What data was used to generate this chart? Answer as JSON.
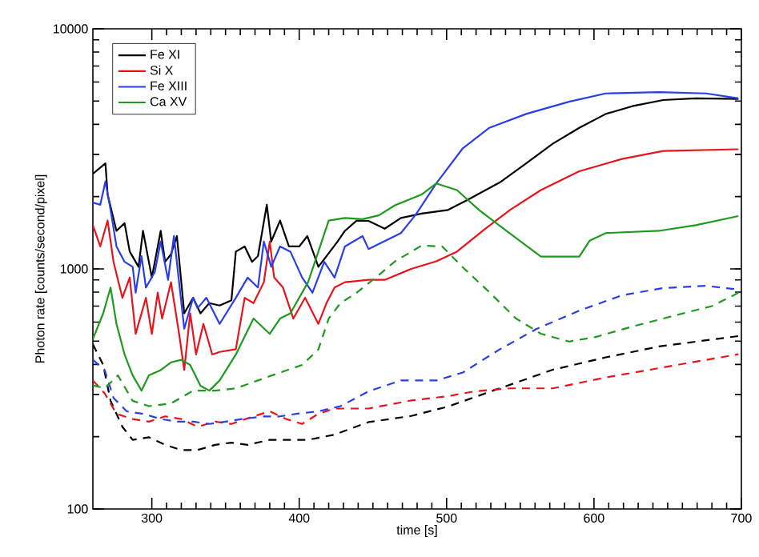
{
  "chart_data": {
    "type": "line",
    "xlabel": "time [s]",
    "ylabel": "Photon rate [counts/second/pixel]",
    "xlim": [
      260,
      700
    ],
    "ylim": [
      100,
      10000
    ],
    "xticks": [
      300,
      400,
      500,
      600,
      700
    ],
    "yticks": [
      100,
      1000,
      10000
    ],
    "log": "y",
    "legend": "top left",
    "series": [
      {
        "name": "Fe XI",
        "color": "#000000",
        "line_style": "solid",
        "x": [
          260,
          268.5,
          270,
          276,
          281.5,
          285,
          291,
          294,
          300,
          306,
          309,
          313,
          317,
          322,
          328,
          333,
          339,
          346,
          354,
          357,
          363,
          368,
          372,
          378,
          381,
          387,
          393,
          400,
          405.5,
          413,
          418.5,
          426,
          431,
          439,
          447,
          458,
          469,
          483,
          501,
          515,
          536,
          554,
          572,
          590,
          608,
          626,
          647,
          669,
          698
        ],
        "values": [
          2490,
          2750,
          2040,
          1440,
          1550,
          1180,
          1020,
          1440,
          920,
          1440,
          1070,
          1150,
          1370,
          653,
          758,
          653,
          720,
          704,
          740,
          1180,
          1240,
          1070,
          1130,
          1850,
          1300,
          1590,
          1240,
          1240,
          1370,
          1020,
          1130,
          1300,
          1440,
          1590,
          1585,
          1470,
          1630,
          1700,
          1760,
          1950,
          2290,
          2750,
          3320,
          3870,
          4420,
          4760,
          5050,
          5130,
          5100
        ]
      },
      {
        "name": "Si X",
        "color": "#e8141c",
        "line_style": "solid",
        "x": [
          260,
          265,
          270,
          274,
          280,
          285,
          289,
          293,
          296,
          300,
          304,
          307,
          313,
          318.5,
          322,
          326,
          330,
          335,
          341,
          346,
          357,
          363,
          369,
          376,
          380,
          383,
          389,
          396,
          404,
          413,
          418.5,
          424,
          431,
          447,
          458,
          476,
          493,
          507,
          525,
          543,
          564,
          590,
          619,
          647,
          698
        ],
        "values": [
          1520,
          1240,
          1590,
          1070,
          758,
          920,
          536,
          653,
          758,
          536,
          796,
          621,
          880,
          536,
          379,
          653,
          440,
          590,
          440,
          451,
          463,
          758,
          720,
          880,
          1300,
          920,
          836,
          621,
          758,
          590,
          720,
          836,
          880,
          900,
          900,
          1000,
          1075,
          1180,
          1450,
          1760,
          2130,
          2550,
          2870,
          3100,
          3150
        ]
      },
      {
        "name": "Fe XIII",
        "color": "#2a3ee8",
        "line_style": "solid",
        "x": [
          260,
          265,
          268.5,
          272,
          276,
          281.5,
          287,
          289,
          293,
          296,
          302,
          306,
          311,
          315,
          322,
          328,
          331,
          337,
          346,
          357,
          365,
          372,
          376,
          381,
          387,
          394,
          402,
          409,
          417,
          424,
          431,
          443,
          447,
          469,
          479,
          493,
          511,
          529,
          554,
          583,
          608,
          644,
          676,
          698
        ],
        "values": [
          1890,
          1850,
          2310,
          1760,
          1240,
          1070,
          1020,
          796,
          1130,
          836,
          970,
          1300,
          900,
          1370,
          563,
          758,
          686,
          758,
          590,
          758,
          920,
          836,
          1300,
          1020,
          1240,
          1180,
          920,
          796,
          1070,
          920,
          1240,
          1370,
          1210,
          1410,
          1680,
          2270,
          3180,
          3870,
          4420,
          4970,
          5380,
          5450,
          5380,
          5130
        ]
      },
      {
        "name": "Ca XV",
        "color": "#1f9a1f",
        "line_style": "solid",
        "x": [
          260,
          267,
          272,
          276,
          281.5,
          287,
          293,
          298,
          306,
          313,
          320,
          326,
          333,
          339,
          346,
          357,
          369,
          380,
          387,
          394,
          406,
          413,
          420,
          431,
          443,
          454,
          465,
          483,
          493,
          507,
          522,
          540,
          554,
          564,
          590,
          597,
          608,
          644,
          669,
          698
        ],
        "values": [
          510,
          653,
          836,
          590,
          440,
          360,
          311,
          360,
          379,
          408,
          418,
          398,
          326,
          311,
          343,
          440,
          621,
          536,
          621,
          653,
          880,
          1180,
          1590,
          1630,
          1610,
          1670,
          1840,
          2040,
          2270,
          2130,
          1760,
          1450,
          1250,
          1125,
          1125,
          1310,
          1410,
          1440,
          1520,
          1660
        ]
      },
      {
        "color": "#000000",
        "line_style": "dashed",
        "x": [
          260,
          267,
          272,
          280,
          287,
          298,
          309,
          320,
          331,
          343,
          354,
          365,
          380,
          394,
          406,
          424,
          447,
          476,
          501,
          536,
          572,
          608,
          644,
          698
        ],
        "values": [
          485,
          398,
          282,
          220,
          194,
          199,
          185,
          176,
          176,
          185,
          189,
          185,
          194,
          194,
          194,
          204,
          230,
          244,
          267,
          318,
          380,
          428,
          475,
          525
        ]
      },
      {
        "color": "#e8141c",
        "line_style": "dashed",
        "x": [
          260,
          268,
          276,
          287,
          298,
          309,
          320,
          331,
          343,
          354,
          369,
          380,
          391,
          402,
          413,
          424,
          447,
          476,
          501,
          519,
          543,
          572,
          608,
          644,
          698
        ],
        "values": [
          343,
          303,
          249,
          237,
          231,
          243,
          237,
          220,
          231,
          226,
          243,
          255,
          237,
          226,
          249,
          262,
          262,
          283,
          295,
          309,
          318,
          318,
          353,
          386,
          441
        ]
      },
      {
        "color": "#2a3ee8",
        "line_style": "dashed",
        "x": [
          260,
          268,
          274,
          283,
          294,
          306,
          317,
          328,
          339,
          350,
          361,
          376,
          387,
          398,
          413,
          428,
          447,
          469,
          493,
          511,
          536,
          561,
          590,
          619,
          647,
          676,
          698
        ],
        "values": [
          418,
          379,
          290,
          255,
          249,
          237,
          231,
          231,
          226,
          231,
          237,
          243,
          243,
          249,
          255,
          268,
          309,
          343,
          343,
          370,
          462,
          562,
          670,
          776,
          832,
          850,
          820
        ]
      },
      {
        "color": "#1f9a1f",
        "line_style": "dashed",
        "x": [
          260,
          268,
          277,
          287,
          298,
          313,
          328,
          343,
          357,
          372,
          387,
          402,
          413,
          420,
          428,
          439,
          454,
          465,
          483,
          497,
          511,
          529,
          547,
          564,
          583,
          601,
          626,
          655,
          680,
          698
        ],
        "values": [
          327,
          318,
          360,
          282,
          268,
          275,
          311,
          311,
          318,
          343,
          370,
          398,
          462,
          621,
          720,
          796,
          942,
          1075,
          1250,
          1240,
          1015,
          800,
          622,
          537,
          498,
          520,
          575,
          640,
          700,
          795
        ]
      }
    ]
  }
}
